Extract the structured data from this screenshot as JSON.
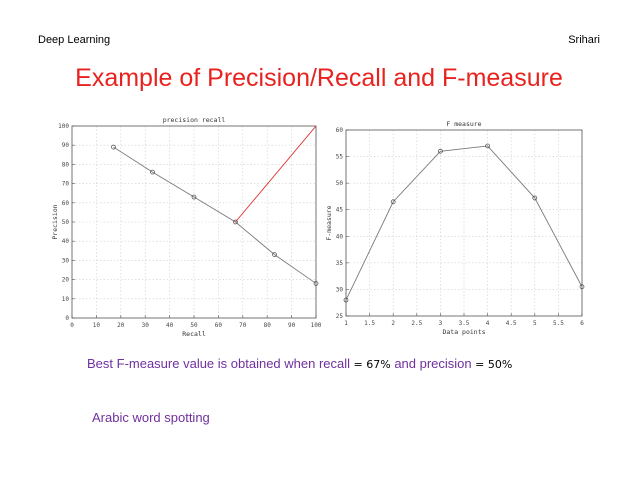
{
  "header": {
    "left": "Deep Learning",
    "right": "Srihari"
  },
  "slide_title": "Example of Precision/Recall and F-measure",
  "caption": {
    "part1": "Best F-measure value is obtained when recall",
    "eq1": " = 67%",
    "part2": " and precision",
    "eq2": " = 50%"
  },
  "note": "Arabic word spotting",
  "colors": {
    "title": "#e8231f",
    "caption": "#7030a0",
    "series": "#7a7a7a",
    "highlight": "#e03030"
  },
  "chart_data": [
    {
      "type": "line",
      "title": "precision recall",
      "xlabel": "Recall",
      "ylabel": "Precision",
      "xlim": [
        0,
        100
      ],
      "ylim": [
        0,
        100
      ],
      "xticks": [
        0,
        10,
        20,
        30,
        40,
        50,
        60,
        70,
        80,
        90,
        100
      ],
      "yticks": [
        0,
        10,
        20,
        30,
        40,
        50,
        60,
        70,
        80,
        90,
        100
      ],
      "grid": true,
      "series": [
        {
          "x": [
            17,
            33,
            50,
            67,
            83,
            100
          ],
          "y": [
            89,
            76,
            63,
            50,
            33,
            18
          ],
          "marker": "circle",
          "color": "#7a7a7a"
        },
        {
          "x": [
            67,
            100
          ],
          "y": [
            50,
            100
          ],
          "marker": "none",
          "color": "#e03030"
        }
      ]
    },
    {
      "type": "line",
      "title": "F measure",
      "xlabel": "Data points",
      "ylabel": "F-measure",
      "xlim": [
        1,
        6
      ],
      "ylim": [
        25,
        60
      ],
      "xticks": [
        1,
        1.5,
        2,
        2.5,
        3,
        3.5,
        4,
        4.5,
        5,
        5.5,
        6
      ],
      "yticks": [
        25,
        30,
        35,
        40,
        45,
        50,
        55,
        60
      ],
      "grid": true,
      "series": [
        {
          "x": [
            1,
            2,
            3,
            4,
            5,
            6
          ],
          "y": [
            28,
            46.5,
            56,
            57,
            47.2,
            30.5
          ],
          "marker": "circle",
          "color": "#7a7a7a"
        }
      ]
    }
  ]
}
